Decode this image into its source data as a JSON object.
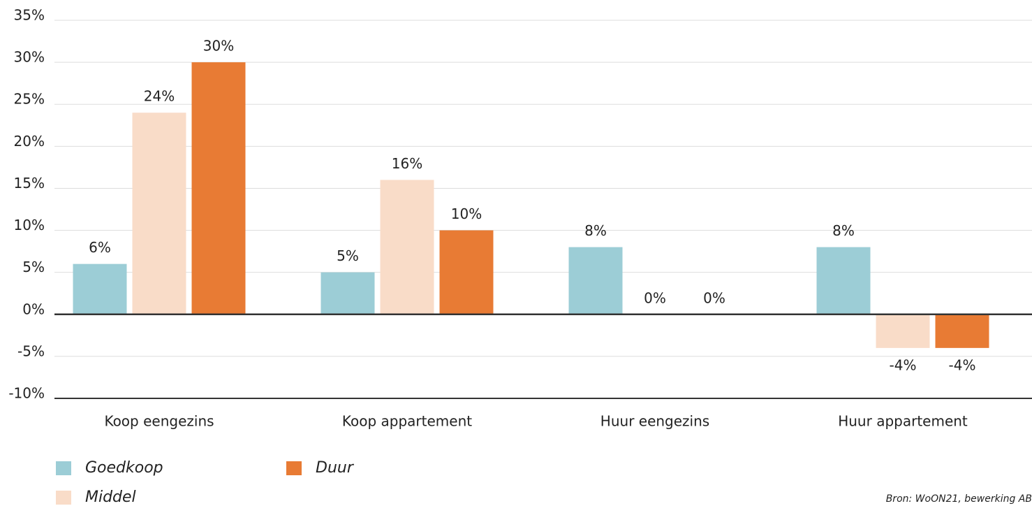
{
  "chart_data": {
    "type": "bar",
    "categories": [
      "Koop eengezins",
      "Koop appartement",
      "Huur eengezins",
      "Huur appartement"
    ],
    "series": [
      {
        "name": "Goedkoop",
        "color": "#9ccdd6",
        "values": [
          6,
          5,
          8,
          8
        ],
        "value_labels": [
          "6%",
          "5%",
          "8%",
          "8%"
        ]
      },
      {
        "name": "Middel",
        "color": "#f9dcc8",
        "values": [
          24,
          16,
          0,
          -4
        ],
        "value_labels": [
          "24%",
          "16%",
          "0%",
          "-4%"
        ]
      },
      {
        "name": "Duur",
        "color": "#e87b34",
        "values": [
          30,
          10,
          0,
          -4
        ],
        "value_labels": [
          "30%",
          "10%",
          "0%",
          "-4%"
        ]
      }
    ],
    "ylim": [
      -10,
      35
    ],
    "yticks": [
      {
        "value": -10,
        "label": "-10%"
      },
      {
        "value": -5,
        "label": "-5%"
      },
      {
        "value": 0,
        "label": "0%"
      },
      {
        "value": 5,
        "label": "5%"
      },
      {
        "value": 10,
        "label": "10%"
      },
      {
        "value": 15,
        "label": "15%"
      },
      {
        "value": 20,
        "label": "20%"
      },
      {
        "value": 25,
        "label": "25%"
      },
      {
        "value": 30,
        "label": "30%"
      },
      {
        "value": 35,
        "label": "35%"
      }
    ],
    "grid": true,
    "source": "Bron: WoON21, bewerking AB"
  }
}
